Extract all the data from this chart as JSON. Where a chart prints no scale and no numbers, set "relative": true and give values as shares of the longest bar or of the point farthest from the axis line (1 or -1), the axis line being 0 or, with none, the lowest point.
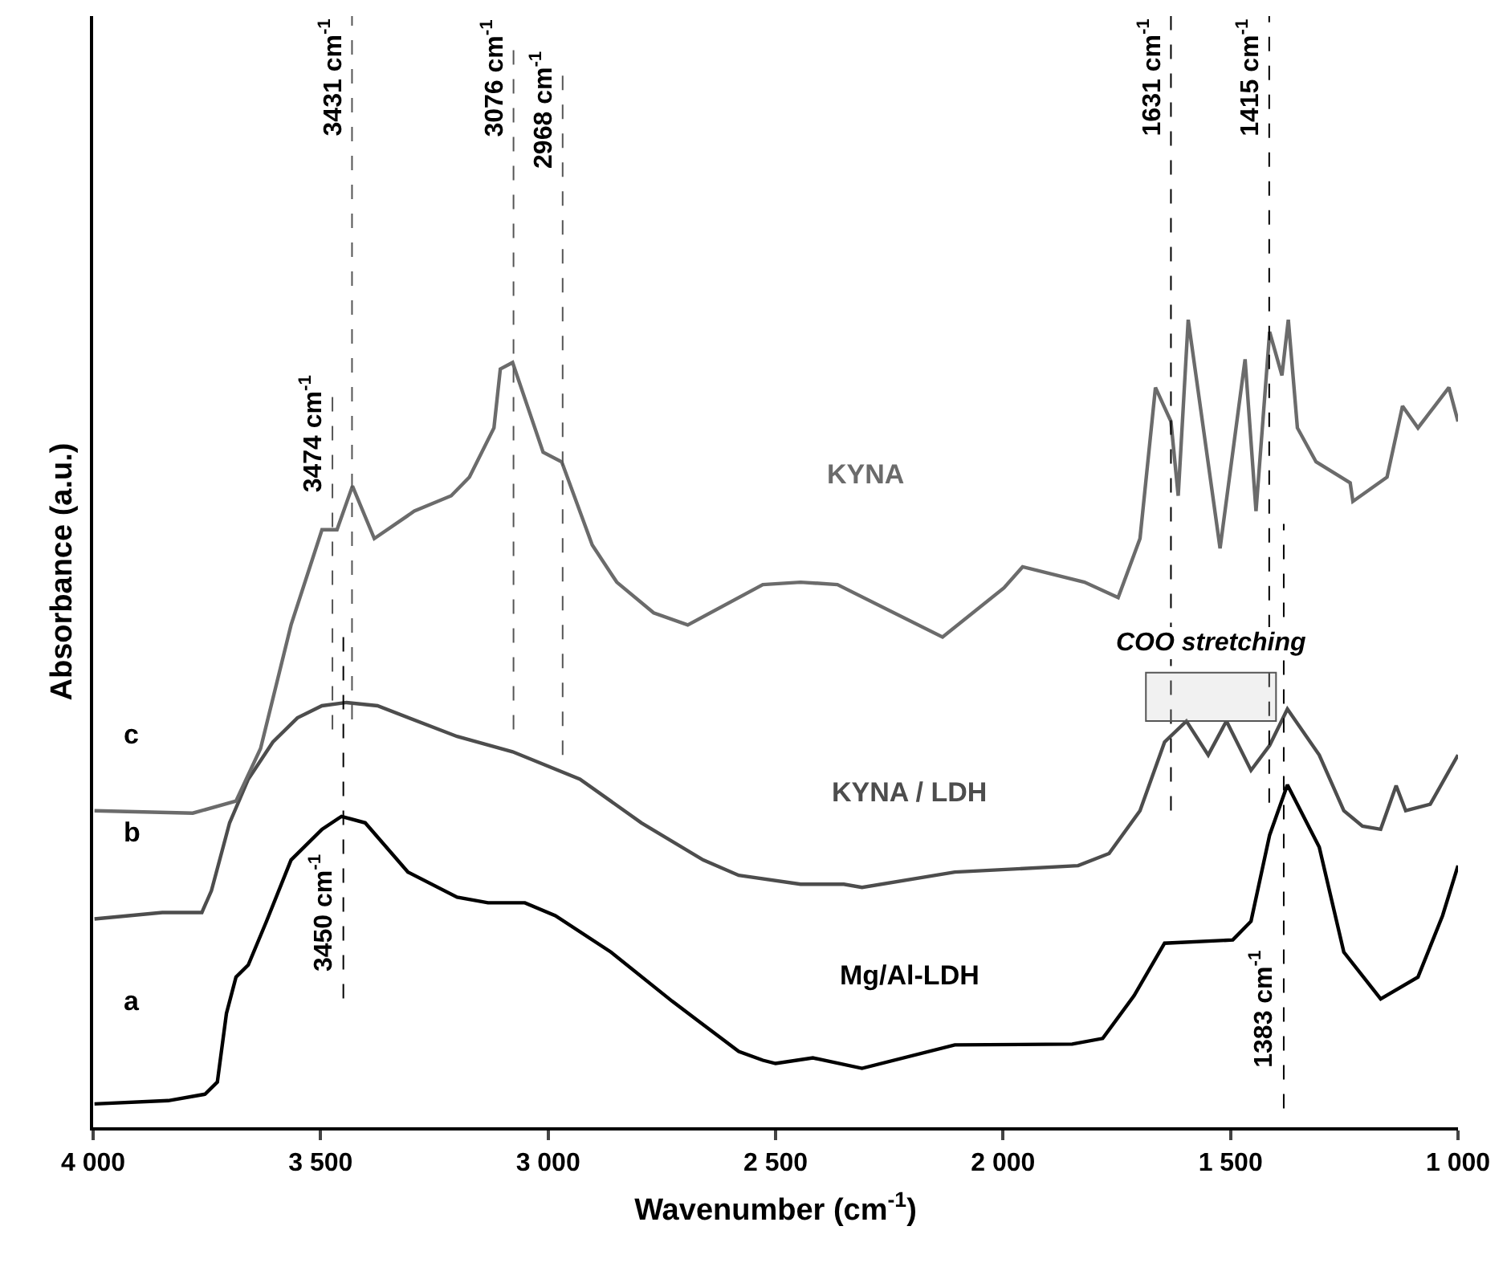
{
  "chart_data": {
    "type": "line",
    "relative": true,
    "legend": false,
    "marker": "none",
    "line_style": "solid",
    "xlabel": "Wavenumber (cm$^{-1}$)",
    "ylabel": "Absorbance (a.u.)",
    "xlim": [
      4000,
      1000
    ],
    "xticks": [
      {
        "value": 4000,
        "label": "4 000"
      },
      {
        "value": 3500,
        "label": "3 500"
      },
      {
        "value": 3000,
        "label": "3 000"
      },
      {
        "value": 2500,
        "label": "2 500"
      },
      {
        "value": 2000,
        "label": "2 000"
      },
      {
        "value": 1500,
        "label": "1 500"
      },
      {
        "value": 1000,
        "label": "1 000"
      }
    ],
    "series": [
      {
        "name": "Mg/Al-LDH",
        "color": "#000000",
        "x": [
          3997,
          3835,
          3754,
          3727,
          3707,
          3686,
          3659,
          3619,
          3565,
          3497,
          3454,
          3402,
          3308,
          3200,
          3132,
          3051,
          2984,
          2862,
          2727,
          2619,
          2581,
          2528,
          2500,
          2418,
          2310,
          2106,
          1848,
          1781,
          1712,
          1645,
          1495,
          1455,
          1414,
          1375,
          1305,
          1251,
          1170,
          1088,
          1034,
          1000
        ],
        "values": [
          0.029,
          0.033,
          0.041,
          0.056,
          0.141,
          0.186,
          0.201,
          0.255,
          0.331,
          0.369,
          0.385,
          0.377,
          0.316,
          0.285,
          0.278,
          0.278,
          0.262,
          0.217,
          0.156,
          0.11,
          0.094,
          0.083,
          0.079,
          0.086,
          0.073,
          0.102,
          0.103,
          0.11,
          0.163,
          0.228,
          0.232,
          0.255,
          0.362,
          0.424,
          0.347,
          0.217,
          0.159,
          0.186,
          0.262,
          0.324
        ]
      },
      {
        "name": "KYNA / LDH",
        "color": "#4d4d4d",
        "x": [
          3997,
          3848,
          3761,
          3740,
          3700,
          3659,
          3605,
          3551,
          3497,
          3443,
          3375,
          3200,
          3078,
          2930,
          2795,
          2659,
          2581,
          2445,
          2350,
          2310,
          2106,
          1835,
          1767,
          1699,
          1645,
          1597,
          1549,
          1509,
          1455,
          1414,
          1375,
          1305,
          1251,
          1210,
          1170,
          1136,
          1115,
          1061,
          1000
        ],
        "values": [
          0.258,
          0.266,
          0.266,
          0.293,
          0.377,
          0.431,
          0.477,
          0.507,
          0.522,
          0.526,
          0.522,
          0.484,
          0.465,
          0.431,
          0.377,
          0.331,
          0.312,
          0.301,
          0.301,
          0.297,
          0.316,
          0.324,
          0.339,
          0.392,
          0.477,
          0.503,
          0.461,
          0.503,
          0.442,
          0.473,
          0.518,
          0.461,
          0.392,
          0.373,
          0.369,
          0.423,
          0.392,
          0.4,
          0.461
        ]
      },
      {
        "name": "KYNA",
        "color": "#6b6b6b",
        "x": [
          3997,
          3781,
          3686,
          3632,
          3565,
          3497,
          3464,
          3430,
          3382,
          3294,
          3213,
          3173,
          3119,
          3105,
          3078,
          3011,
          2970,
          2903,
          2849,
          2768,
          2693,
          2528,
          2445,
          2364,
          2133,
          1998,
          1957,
          1821,
          1747,
          1699,
          1665,
          1631,
          1615,
          1593,
          1523,
          1468,
          1444,
          1414,
          1387,
          1373,
          1353,
          1312,
          1237,
          1231,
          1156,
          1122,
          1088,
          1020,
          1000
        ],
        "values": [
          0.392,
          0.389,
          0.404,
          0.469,
          0.622,
          0.74,
          0.74,
          0.794,
          0.729,
          0.763,
          0.782,
          0.805,
          0.866,
          0.939,
          0.947,
          0.836,
          0.824,
          0.721,
          0.675,
          0.637,
          0.622,
          0.672,
          0.675,
          0.672,
          0.607,
          0.668,
          0.694,
          0.675,
          0.656,
          0.729,
          0.916,
          0.874,
          0.782,
          1.0,
          0.717,
          0.951,
          0.763,
          0.985,
          0.931,
          1.0,
          0.866,
          0.824,
          0.798,
          0.775,
          0.805,
          0.893,
          0.866,
          0.916,
          0.874
        ]
      }
    ],
    "ref_lines": [
      {
        "axis": "x",
        "value": 3474,
        "label": "3474 cm$^{-1}$",
        "color": "#555555",
        "line_style": "dashed"
      },
      {
        "axis": "x",
        "value": 3431,
        "label": "3431 cm$^{-1}$",
        "color": "#555555",
        "line_style": "dashed"
      },
      {
        "axis": "x",
        "value": 3450,
        "label": "3450 cm$^{-1}$",
        "color": "#000000",
        "line_style": "dashed"
      },
      {
        "axis": "x",
        "value": 3076,
        "label": "3076 cm$^{-1}$",
        "color": "#555555",
        "line_style": "dashed"
      },
      {
        "axis": "x",
        "value": 2968,
        "label": "2968 cm$^{-1}$",
        "color": "#555555",
        "line_style": "dashed"
      },
      {
        "axis": "x",
        "value": 1631,
        "label": "1631 cm$^{-1}$",
        "color": "#000000",
        "line_style": "dashed"
      },
      {
        "axis": "x",
        "value": 1415,
        "label": "1415 cm$^{-1}$",
        "color": "#000000",
        "line_style": "dashed"
      },
      {
        "axis": "x",
        "value": 1383,
        "label": "1383 cm$^{-1}$",
        "color": "#000000",
        "line_style": "dashed"
      }
    ],
    "bands": [
      {
        "axis": "x",
        "from": 1686,
        "to": 1400,
        "label": "COO stretching",
        "color": "#555555"
      }
    ],
    "annotations": [
      "c",
      "b",
      "a"
    ]
  }
}
